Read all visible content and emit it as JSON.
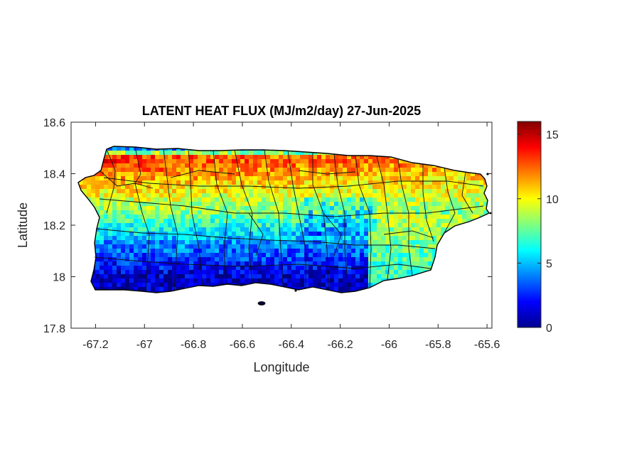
{
  "title": "LATENT HEAT FLUX (MJ/m2/day) 27-Jun-2025",
  "chart_data": {
    "type": "heatmap",
    "title": "LATENT HEAT FLUX (MJ/m2/day) 27-Jun-2025",
    "xlabel": "Longitude",
    "ylabel": "Latitude",
    "xlim": [
      -67.3,
      -65.58
    ],
    "ylim": [
      17.8,
      18.6
    ],
    "xticks": [
      -67.2,
      -67,
      -66.8,
      -66.6,
      -66.4,
      -66.2,
      -66,
      -65.8,
      -65.6
    ],
    "yticks": [
      17.8,
      18,
      18.2,
      18.4,
      18.6
    ],
    "xtick_labels": [
      "-67.2",
      "-67",
      "-66.8",
      "-66.6",
      "-66.4",
      "-66.2",
      "-66",
      "-65.8",
      "-65.6"
    ],
    "ytick_labels": [
      "17.8",
      "18",
      "18.2",
      "18.4",
      "18.6"
    ],
    "colorbar": {
      "colormap": "jet",
      "limits": [
        0,
        16
      ],
      "ticks": [
        0,
        5,
        10,
        15
      ],
      "tick_labels": [
        "0",
        "5",
        "10",
        "15"
      ]
    },
    "spatial_pattern": [
      {
        "region": "north coast strip",
        "value": 1
      },
      {
        "region": "northwest",
        "value": 14
      },
      {
        "region": "north-central",
        "value": 13
      },
      {
        "region": "northeast",
        "value": 12
      },
      {
        "region": "interior",
        "value": 8
      },
      {
        "region": "south-central",
        "value": 5
      },
      {
        "region": "south coast",
        "value": 1
      }
    ]
  }
}
